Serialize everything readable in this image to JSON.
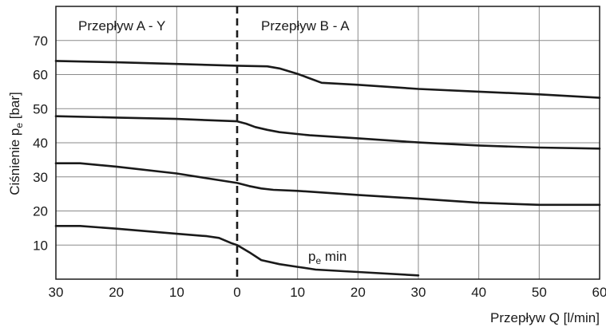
{
  "chart_data": {
    "type": "line",
    "title": "",
    "xlabel": "Przepływ Q [l/min]",
    "ylabel_main": "Ciśnienie p",
    "ylabel_sub": "e",
    "ylabel_unit": " [bar]",
    "regions": [
      {
        "label": "Przepływ A - Y"
      },
      {
        "label": "Przepływ B - A"
      }
    ],
    "x_ticks": [
      "30",
      "20",
      "10",
      "0",
      "10",
      "20",
      "30",
      "40",
      "50",
      "60"
    ],
    "y_ticks": [
      "10",
      "20",
      "30",
      "40",
      "50",
      "60",
      "70"
    ],
    "xlim": [
      -30,
      60
    ],
    "ylim": [
      0,
      80
    ],
    "grid": true,
    "series": [
      {
        "points": [
          [
            -30,
            64
          ],
          [
            -20,
            63.6
          ],
          [
            -10,
            63.1
          ],
          [
            0,
            62.6
          ],
          [
            5,
            62.4
          ],
          [
            7,
            61.8
          ],
          [
            10,
            60.2
          ],
          [
            14,
            57.6
          ],
          [
            20,
            57
          ],
          [
            30,
            55.8
          ],
          [
            40,
            55
          ],
          [
            50,
            54.2
          ],
          [
            60,
            53.2
          ]
        ]
      },
      {
        "points": [
          [
            -30,
            47.8
          ],
          [
            -20,
            47.4
          ],
          [
            -10,
            47
          ],
          [
            0,
            46.3
          ],
          [
            1.5,
            45.6
          ],
          [
            3,
            44.6
          ],
          [
            5,
            43.8
          ],
          [
            7,
            43.1
          ],
          [
            12,
            42.2
          ],
          [
            20,
            41.3
          ],
          [
            30,
            40.1
          ],
          [
            40,
            39.2
          ],
          [
            50,
            38.6
          ],
          [
            60,
            38.3
          ]
        ]
      },
      {
        "points": [
          [
            -30,
            34
          ],
          [
            -26,
            34
          ],
          [
            -20,
            33
          ],
          [
            -10,
            31
          ],
          [
            -5,
            29.6
          ],
          [
            0,
            28.2
          ],
          [
            2,
            27.3
          ],
          [
            4,
            26.6
          ],
          [
            6,
            26.2
          ],
          [
            10,
            25.9
          ],
          [
            20,
            24.7
          ],
          [
            30,
            23.6
          ],
          [
            40,
            22.4
          ],
          [
            50,
            21.8
          ],
          [
            60,
            21.8
          ]
        ]
      },
      {
        "name_main": "p",
        "name_sub": "e",
        "name_rest": " min",
        "points": [
          [
            -30,
            15.6
          ],
          [
            -26,
            15.6
          ],
          [
            -20,
            14.8
          ],
          [
            -10,
            13.3
          ],
          [
            -5,
            12.6
          ],
          [
            -3,
            12.1
          ],
          [
            -1,
            10.6
          ],
          [
            0,
            10
          ],
          [
            2,
            7.9
          ],
          [
            4,
            5.6
          ],
          [
            7,
            4.4
          ],
          [
            10,
            3.6
          ],
          [
            13,
            2.8
          ],
          [
            20,
            2.1
          ],
          [
            30,
            1.1
          ]
        ]
      }
    ]
  }
}
